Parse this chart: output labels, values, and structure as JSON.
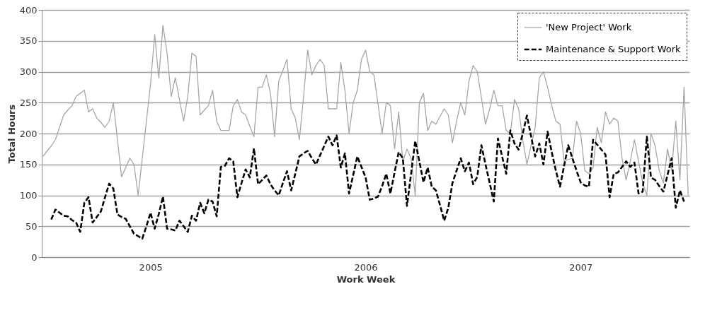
{
  "chart_data": {
    "type": "line",
    "xlabel": "Work Week",
    "ylabel": "Total Hours",
    "categories": [
      null,
      null,
      null,
      null,
      null,
      null,
      null,
      null,
      null,
      null,
      null,
      null,
      null,
      null,
      null,
      null,
      null,
      null,
      null,
      null,
      null,
      null,
      null,
      null,
      null,
      null,
      "2005",
      null,
      null,
      null,
      null,
      null,
      null,
      null,
      null,
      null,
      null,
      null,
      null,
      null,
      null,
      null,
      null,
      null,
      null,
      null,
      null,
      null,
      null,
      null,
      null,
      null,
      null,
      null,
      null,
      null,
      null,
      null,
      null,
      null,
      null,
      null,
      null,
      null,
      null,
      null,
      null,
      null,
      null,
      null,
      null,
      null,
      null,
      null,
      null,
      null,
      null,
      null,
      "2006",
      null,
      null,
      null,
      null,
      null,
      null,
      null,
      null,
      null,
      null,
      null,
      null,
      null,
      null,
      null,
      null,
      null,
      null,
      null,
      null,
      null,
      null,
      null,
      null,
      null,
      null,
      null,
      null,
      null,
      null,
      null,
      null,
      null,
      null,
      null,
      null,
      null,
      null,
      null,
      null,
      null,
      null,
      null,
      null,
      null,
      null,
      null,
      null,
      null,
      null,
      null,
      "2007",
      null,
      null,
      null,
      null,
      null,
      null,
      null,
      null,
      null,
      null,
      null,
      null,
      null,
      null,
      null,
      null,
      null,
      null,
      null,
      null,
      null,
      null,
      null,
      null,
      null,
      null
    ],
    "ylim": [
      0,
      400
    ],
    "yticks": [
      0,
      50,
      100,
      150,
      200,
      250,
      300,
      350,
      400
    ],
    "grid": "y",
    "legend": "top right",
    "series": [
      {
        "name": "'New Project' Work",
        "color": "#a6a6a6",
        "line_style": "solid",
        "values": [
          163,
          172,
          180,
          190,
          210,
          230,
          238,
          245,
          260,
          265,
          270,
          235,
          240,
          225,
          218,
          210,
          220,
          250,
          190,
          130,
          145,
          160,
          150,
          100,
          160,
          220,
          280,
          360,
          290,
          375,
          330,
          260,
          290,
          255,
          220,
          260,
          330,
          325,
          230,
          238,
          245,
          270,
          220,
          205,
          205,
          205,
          245,
          255,
          235,
          230,
          212,
          195,
          275,
          275,
          295,
          265,
          195,
          285,
          302,
          320,
          240,
          225,
          190,
          260,
          335,
          295,
          310,
          320,
          310,
          240,
          240,
          240,
          315,
          270,
          200,
          250,
          270,
          320,
          335,
          300,
          295,
          248,
          200,
          250,
          245,
          175,
          235,
          155,
          175,
          160,
          100,
          250,
          265,
          205,
          220,
          215,
          228,
          240,
          230,
          185,
          220,
          250,
          230,
          285,
          310,
          300,
          258,
          215,
          240,
          270,
          245,
          245,
          205,
          200,
          255,
          240,
          190,
          150,
          180,
          210,
          290,
          300,
          275,
          245,
          220,
          215,
          155,
          158,
          160,
          220,
          200,
          140,
          135,
          145,
          210,
          185,
          235,
          215,
          225,
          220,
          160,
          125,
          155,
          190,
          155,
          120,
          100,
          200,
          180,
          140,
          120,
          175,
          140,
          220,
          125,
          275,
          100
        ]
      },
      {
        "name": "Maintenance & Support Work",
        "color": "#000000",
        "line_style": "dashed",
        "values": [
          null,
          null,
          61,
          77,
          72,
          67,
          66,
          60,
          56,
          41,
          88,
          97,
          56,
          65,
          74,
          97,
          119,
          111,
          69,
          65,
          62,
          50,
          38,
          34,
          30,
          50,
          72,
          46,
          70,
          98,
          46,
          45,
          43,
          59,
          50,
          41,
          67,
          59,
          88,
          71,
          93,
          90,
          66,
          146,
          148,
          160,
          155,
          97,
          120,
          142,
          129,
          176,
          118,
          125,
          132,
          118,
          108,
          100,
          120,
          139,
          108,
          135,
          163,
          168,
          172,
          160,
          150,
          165,
          180,
          195,
          181,
          197,
          145,
          168,
          103,
          133,
          163,
          146,
          129,
          93,
          95,
          98,
          115,
          135,
          103,
          137,
          170,
          160,
          83,
          135,
          188,
          155,
          121,
          145,
          114,
          108,
          84,
          59,
          80,
          120,
          140,
          160,
          139,
          153,
          118,
          130,
          181,
          150,
          120,
          90,
          192,
          163,
          135,
          205,
          184,
          174,
          200,
          229,
          196,
          163,
          184,
          150,
          203,
          170,
          140,
          114,
          148,
          181,
          160,
          140,
          121,
          116,
          114,
          190,
          182,
          174,
          166,
          97,
          135,
          137,
          146,
          155,
          146,
          153,
          103,
          106,
          195,
          129,
          125,
          115,
          106,
          133,
          160,
          80,
          108,
          90,
          null
        ]
      }
    ]
  }
}
